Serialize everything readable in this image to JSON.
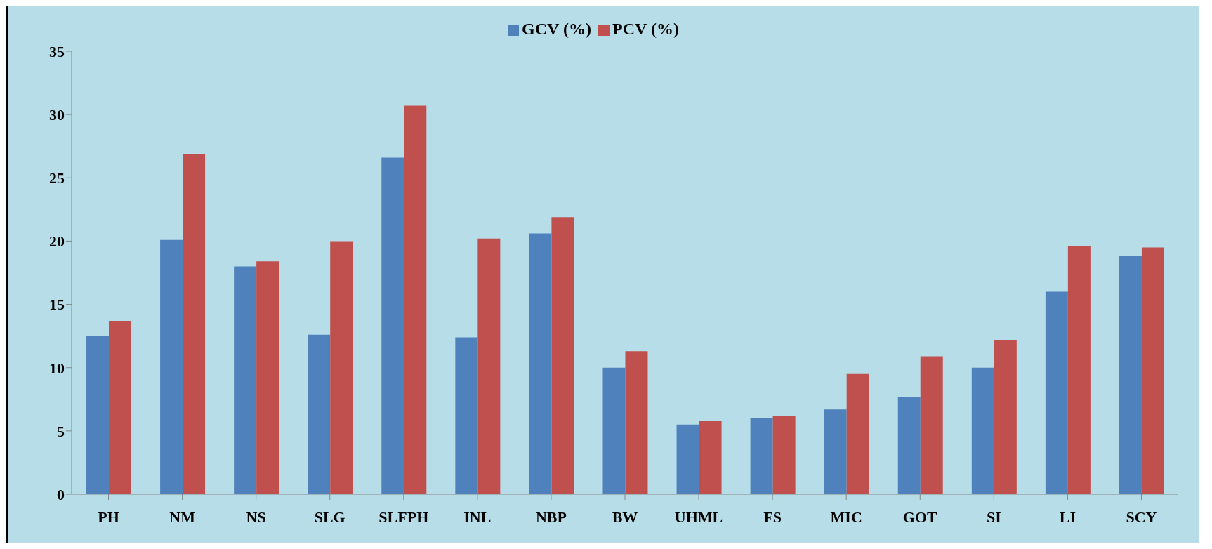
{
  "chart_data": {
    "type": "bar",
    "categories": [
      "PH",
      "NM",
      "NS",
      "SLG",
      "SLFPH",
      "INL",
      "NBP",
      "BW",
      "UHML",
      "FS",
      "MIC",
      "GOT",
      "SI",
      "LI",
      "SCY"
    ],
    "series": [
      {
        "name": "GCV (%)",
        "color": "#4f81bd",
        "values": [
          12.5,
          20.1,
          18.0,
          12.6,
          26.6,
          12.4,
          20.6,
          10.0,
          5.5,
          6.0,
          6.7,
          7.7,
          10.0,
          16.0,
          18.8
        ]
      },
      {
        "name": "PCV (%)",
        "color": "#c0504d",
        "values": [
          13.7,
          26.9,
          18.4,
          20.0,
          30.7,
          20.2,
          21.9,
          11.3,
          5.8,
          6.2,
          9.5,
          10.9,
          12.2,
          19.6,
          19.5
        ]
      }
    ],
    "ylim": [
      0,
      35
    ],
    "yticks": [
      0,
      5,
      10,
      15,
      20,
      25,
      30,
      35
    ],
    "grid": false,
    "legend": "top"
  }
}
